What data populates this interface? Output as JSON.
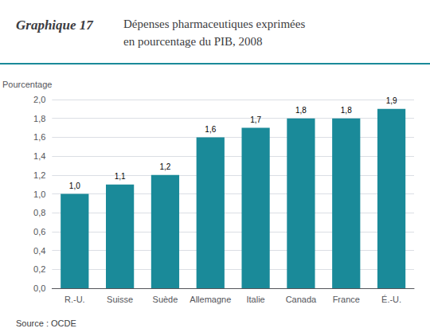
{
  "chart_data": {
    "type": "bar",
    "title": "Graphique 17",
    "subtitle": "Dépenses pharmaceutiques exprimées\nen pourcentage du PIB, 2008",
    "ylabel": "Pourcentage",
    "annotations": [
      "Source : OCDE"
    ],
    "categories": [
      "R.-U.",
      "Suisse",
      "Suède",
      "Allemagne",
      "Italie",
      "Canada",
      "France",
      "É.-U."
    ],
    "values": [
      1.0,
      1.1,
      1.2,
      1.6,
      1.7,
      1.8,
      1.8,
      1.9
    ],
    "value_labels": [
      "1,0",
      "1,1",
      "1,2",
      "1,6",
      "1,7",
      "1,8",
      "1,8",
      "1,9"
    ],
    "data_labels": true,
    "color": "#1a8a99",
    "ylim": [
      0.0,
      2.0
    ],
    "yticks": [
      {
        "value": 0.0,
        "label": "0,0"
      },
      {
        "value": 0.2,
        "label": "0,2"
      },
      {
        "value": 0.4,
        "label": "0,4"
      },
      {
        "value": 0.6,
        "label": "0,6"
      },
      {
        "value": 0.8,
        "label": "0,8"
      },
      {
        "value": 1.0,
        "label": "1,0"
      },
      {
        "value": 1.2,
        "label": "1,2"
      },
      {
        "value": 1.4,
        "label": "1,4"
      },
      {
        "value": 1.6,
        "label": "1,6"
      },
      {
        "value": 1.8,
        "label": "1,8"
      },
      {
        "value": 2.0,
        "label": "2,0"
      }
    ],
    "grid": true
  }
}
